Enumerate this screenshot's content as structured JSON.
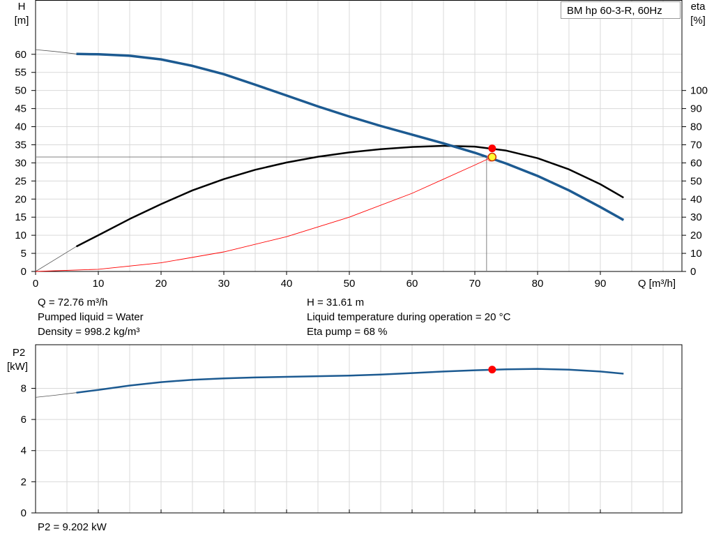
{
  "chart_data": [
    {
      "type": "line",
      "title": "BM hp 60-3-R, 60Hz",
      "xlabel": "Q [m³/h]",
      "ylabel_left": [
        "H",
        "[m]"
      ],
      "ylabel_right": [
        "eta",
        "[%]"
      ],
      "xlim": [
        0,
        103
      ],
      "x_ticks": [
        0,
        10,
        20,
        30,
        40,
        50,
        60,
        70,
        80,
        90
      ],
      "ylim_left": [
        0,
        75
      ],
      "y_ticks_left": [
        0,
        5,
        10,
        15,
        20,
        25,
        30,
        35,
        40,
        45,
        50,
        55,
        60
      ],
      "ylim_right": [
        0,
        150
      ],
      "y_ticks_right": [
        0,
        10,
        20,
        30,
        40,
        50,
        60,
        70,
        80,
        90,
        100
      ],
      "grid": true,
      "series": [
        {
          "axis": "left",
          "color": "#1c5a91",
          "x": [
            6.5,
            10,
            15,
            20,
            25,
            30,
            35,
            40,
            45,
            50,
            55,
            60,
            65,
            70,
            75,
            80,
            85,
            90,
            93.7
          ],
          "y": [
            60.1,
            60.0,
            59.6,
            58.6,
            56.8,
            54.5,
            51.6,
            48.6,
            45.6,
            42.8,
            40.2,
            37.8,
            35.4,
            32.8,
            29.8,
            26.4,
            22.4,
            17.8,
            14.2
          ],
          "extrapolated": {
            "x": [
              0,
              3,
              6.5
            ],
            "y": [
              61.3,
              60.8,
              60.1
            ]
          }
        },
        {
          "axis": "right",
          "color": "#000000",
          "x": [
            6.5,
            10,
            15,
            20,
            25,
            30,
            35,
            40,
            45,
            50,
            55,
            60,
            65,
            70,
            75,
            80,
            85,
            90,
            93.7
          ],
          "y": [
            13.8,
            20.0,
            29.0,
            37.2,
            44.8,
            51.0,
            56.2,
            60.2,
            63.4,
            65.8,
            67.6,
            68.8,
            69.4,
            69.0,
            66.8,
            62.6,
            56.4,
            48.2,
            40.8
          ],
          "extrapolated": {
            "x": [
              0,
              6.5
            ],
            "y": [
              0,
              13.8
            ]
          }
        },
        {
          "axis": "left",
          "color": "#ff0000",
          "x": [
            0,
            10,
            20,
            30,
            40,
            50,
            60,
            70,
            72.76
          ],
          "y": [
            0,
            0.6,
            2.4,
            5.4,
            9.6,
            15.0,
            21.6,
            29.4,
            31.61
          ]
        }
      ],
      "operating_point": {
        "q": 72.76,
        "h": 31.61,
        "eta": 68
      },
      "info": {
        "q": "Q = 72.76 m³/h",
        "h": "H = 31.61 m",
        "liquid": "Pumped liquid = Water",
        "temperature": "Liquid temperature during operation = 20 °C",
        "density": "Density = 998.2 kg/m³",
        "eta_pump": "Eta pump = 68 %"
      }
    },
    {
      "type": "line",
      "ylabel": [
        "P2",
        "[kW]"
      ],
      "xlim": [
        0,
        103
      ],
      "x_ticks": [
        0,
        10,
        20,
        30,
        40,
        50,
        60,
        70,
        80,
        90
      ],
      "ylim": [
        0,
        10.8
      ],
      "y_ticks": [
        0,
        2,
        4,
        6,
        8
      ],
      "grid": true,
      "series": [
        {
          "color": "#1c5a91",
          "x": [
            6.5,
            10,
            15,
            20,
            25,
            30,
            35,
            40,
            45,
            50,
            55,
            60,
            65,
            70,
            75,
            80,
            85,
            90,
            93.7
          ],
          "y": [
            7.72,
            7.9,
            8.18,
            8.4,
            8.55,
            8.64,
            8.7,
            8.74,
            8.78,
            8.82,
            8.88,
            8.98,
            9.08,
            9.16,
            9.22,
            9.25,
            9.2,
            9.08,
            8.94
          ],
          "extrapolated": {
            "x": [
              0,
              3,
              6.5
            ],
            "y": [
              7.42,
              7.55,
              7.72
            ]
          }
        }
      ],
      "operating_point": {
        "q": 72.76,
        "p2": 9.202
      },
      "info": {
        "p2": "P2 = 9.202 kW"
      }
    }
  ]
}
